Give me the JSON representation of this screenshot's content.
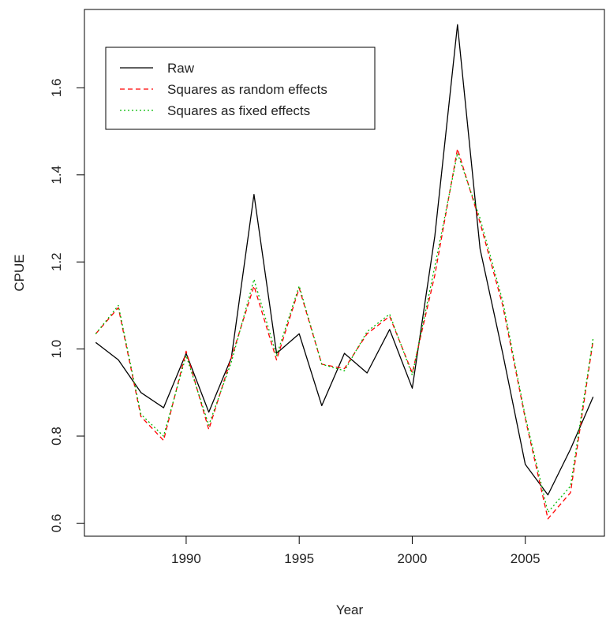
{
  "chart_data": {
    "type": "line",
    "title": "",
    "xlabel": "Year",
    "ylabel": "CPUE",
    "xlim": [
      1985.5,
      2008.5
    ],
    "ylim": [
      0.57,
      1.78
    ],
    "x_ticks": [
      1990,
      1995,
      2000,
      2005
    ],
    "y_ticks": [
      0.6,
      0.8,
      1.0,
      1.2,
      1.4,
      1.6
    ],
    "x_tick_labels": [
      "1990",
      "1995",
      "2000",
      "2005"
    ],
    "y_tick_labels": [
      "0.6",
      "0.8",
      "1.0",
      "1.2",
      "1.4",
      "1.6"
    ],
    "grid": false,
    "legend_position": "top-left",
    "x": [
      1986,
      1987,
      1988,
      1989,
      1990,
      1991,
      1992,
      1993,
      1994,
      1995,
      1996,
      1997,
      1998,
      1999,
      2000,
      2001,
      2002,
      2003,
      2004,
      2005,
      2006,
      2007,
      2008
    ],
    "series": [
      {
        "name": "Raw",
        "color": "#000000",
        "dash": "solid",
        "values": [
          1.015,
          0.975,
          0.9,
          0.865,
          0.99,
          0.855,
          0.98,
          1.355,
          0.99,
          1.035,
          0.87,
          0.99,
          0.945,
          1.045,
          0.91,
          1.26,
          1.745,
          1.23,
          0.99,
          0.735,
          0.665,
          0.77,
          0.89
        ]
      },
      {
        "name": "Squares as random effects",
        "color": "#ff0000",
        "dash": "dashed",
        "values": [
          1.035,
          1.095,
          0.845,
          0.79,
          0.995,
          0.815,
          0.98,
          1.145,
          0.975,
          1.14,
          0.965,
          0.955,
          1.035,
          1.075,
          0.945,
          1.17,
          1.46,
          1.29,
          1.1,
          0.84,
          0.61,
          0.67,
          1.02
        ]
      },
      {
        "name": "Squares as fixed effects",
        "color": "#00bb00",
        "dash": "dotted",
        "values": [
          1.035,
          1.1,
          0.85,
          0.8,
          0.985,
          0.825,
          0.97,
          1.16,
          0.985,
          1.145,
          0.965,
          0.95,
          1.04,
          1.08,
          0.94,
          1.19,
          1.45,
          1.3,
          1.11,
          0.845,
          0.625,
          0.685,
          1.025
        ]
      }
    ]
  }
}
